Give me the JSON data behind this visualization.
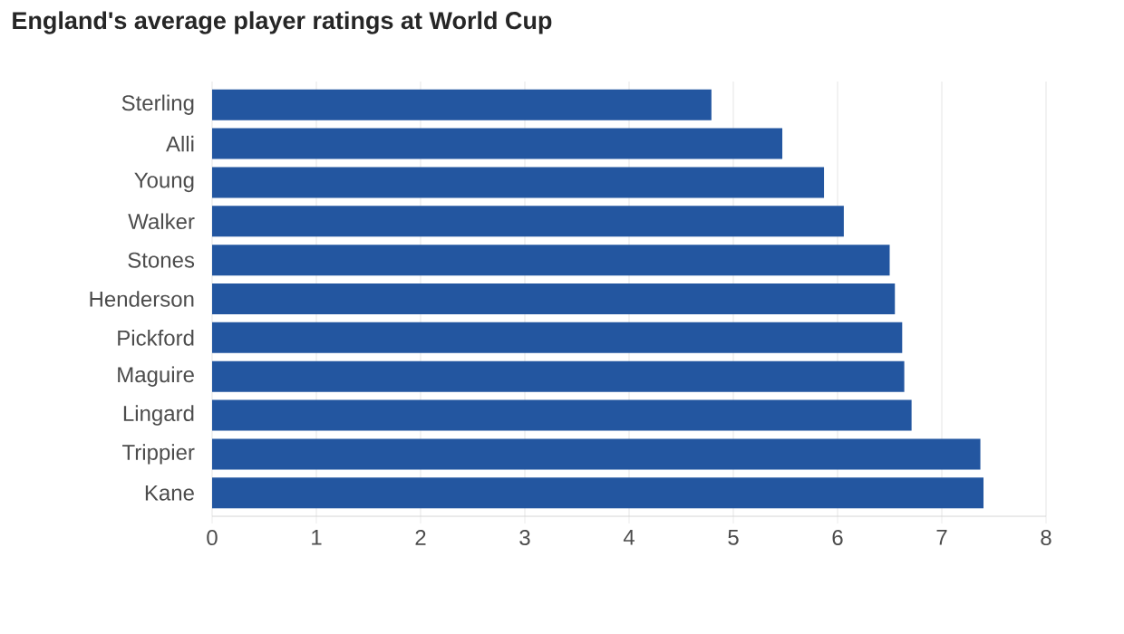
{
  "chart_data": {
    "type": "bar",
    "orientation": "horizontal",
    "title": "England's average player ratings at World Cup",
    "categories": [
      "Sterling",
      "Alli",
      "Young",
      "Walker",
      "Stones",
      "Henderson",
      "Pickford",
      "Maguire",
      "Lingard",
      "Trippier",
      "Kane"
    ],
    "values": [
      4.79,
      5.47,
      5.87,
      6.06,
      6.5,
      6.55,
      6.62,
      6.64,
      6.71,
      7.37,
      7.4
    ],
    "color": "#2356a0",
    "xlim": [
      0,
      8
    ],
    "xticks": [
      0,
      1,
      2,
      3,
      4,
      5,
      6,
      7,
      8
    ],
    "grid": "x"
  }
}
